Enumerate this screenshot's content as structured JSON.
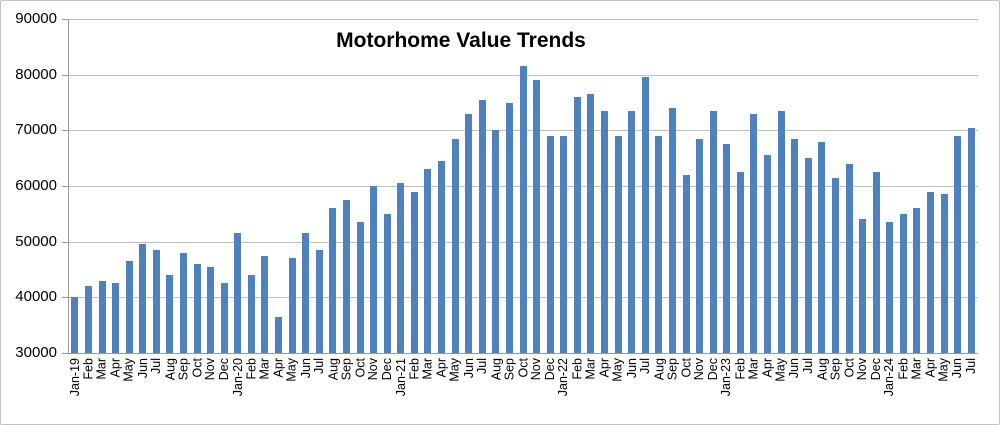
{
  "chart_data": {
    "type": "bar",
    "title": "Motorhome Value Trends",
    "xlabel": "",
    "ylabel": "",
    "ylim": [
      30000,
      90000
    ],
    "yticks": [
      30000,
      40000,
      50000,
      60000,
      70000,
      80000,
      90000
    ],
    "grid": "horizontal",
    "legend": "none",
    "categories": [
      "Jan-19",
      "Feb",
      "Mar",
      "Apr",
      "May",
      "Jun",
      "Jul",
      "Aug",
      "Sep",
      "Oct",
      "Nov",
      "Dec",
      "Jan-20",
      "Feb",
      "Mar",
      "Apr",
      "May",
      "Jun",
      "Jul",
      "Aug",
      "Sep",
      "Oct",
      "Nov",
      "Dec",
      "Jan-21",
      "Feb",
      "Mar",
      "Apr",
      "May",
      "Jun",
      "Jul",
      "Aug",
      "Sep",
      "Oct",
      "Nov",
      "Dec",
      "Jan-22",
      "Feb",
      "Mar",
      "Apr",
      "May",
      "Jun",
      "Jul",
      "Aug",
      "Sep",
      "Oct",
      "Nov",
      "Dec",
      "Jan-23",
      "Feb",
      "Mar",
      "Apr",
      "May",
      "Jun",
      "Jul",
      "Aug",
      "Sep",
      "Oct",
      "Nov",
      "Dec",
      "Jan-24",
      "Feb",
      "Mar",
      "Apr",
      "May",
      "Jun",
      "Jul"
    ],
    "values": [
      40000,
      42000,
      43000,
      42500,
      46500,
      49500,
      48500,
      44000,
      48000,
      46000,
      45500,
      42500,
      51500,
      44000,
      47500,
      36500,
      47000,
      51500,
      48500,
      56000,
      57500,
      53500,
      60000,
      55000,
      60500,
      59000,
      63000,
      64500,
      68500,
      73000,
      75500,
      70000,
      75000,
      81500,
      79000,
      69000,
      69000,
      76000,
      76500,
      73500,
      69000,
      73500,
      79500,
      69000,
      74000,
      62000,
      68500,
      73500,
      67500,
      62500,
      73000,
      65500,
      73500,
      68500,
      65000,
      68000,
      61500,
      64000,
      54000,
      62500,
      53500,
      55000,
      56000,
      59000,
      58500,
      69000,
      70500
    ],
    "colors": {
      "bar": "#4F81BD",
      "gridline": "#BFBFBF",
      "axis": "#9A9A9A",
      "border": "#C3C3C3",
      "background": "#FFFFFF",
      "title": "#000000",
      "label": "#000000"
    }
  }
}
